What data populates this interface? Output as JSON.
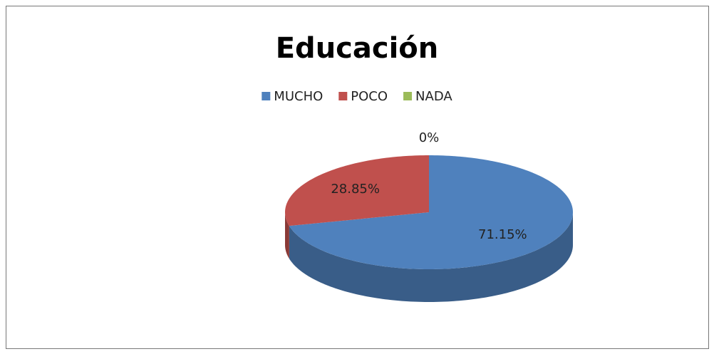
{
  "chart_data": {
    "type": "pie3d",
    "title": "Educación",
    "categories": [
      "MUCHO",
      "POCO",
      "NADA"
    ],
    "values": [
      71.15,
      28.85,
      0
    ],
    "value_labels": [
      "71.15%",
      "28.85%",
      "0%"
    ],
    "colors": [
      "#4f81bd",
      "#c0504d",
      "#9bbb59"
    ],
    "legend": "top"
  }
}
